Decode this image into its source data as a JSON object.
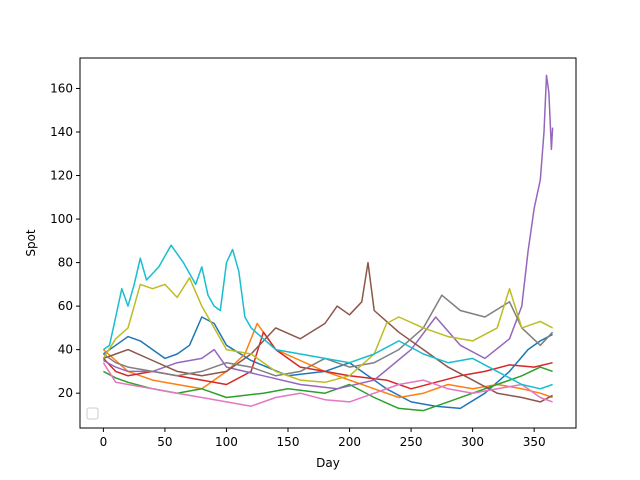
{
  "chart_data": {
    "type": "line",
    "title": "",
    "xlabel": "Day",
    "ylabel": "Spot",
    "xlim": [
      -19,
      384
    ],
    "ylim": [
      4,
      174
    ],
    "xticks": [
      0,
      50,
      100,
      150,
      200,
      250,
      300,
      350
    ],
    "yticks": [
      20,
      40,
      60,
      80,
      100,
      120,
      140,
      160
    ],
    "grid": false,
    "legend": "lower-left (empty)",
    "series": [
      {
        "color": "#1f77b4",
        "points": [
          [
            0,
            38
          ],
          [
            10,
            42
          ],
          [
            20,
            46
          ],
          [
            30,
            44
          ],
          [
            40,
            40
          ],
          [
            50,
            36
          ],
          [
            60,
            38
          ],
          [
            70,
            42
          ],
          [
            80,
            55
          ],
          [
            90,
            52
          ],
          [
            100,
            42
          ],
          [
            120,
            35
          ],
          [
            150,
            28
          ],
          [
            180,
            30
          ],
          [
            200,
            34
          ],
          [
            230,
            22
          ],
          [
            250,
            16
          ],
          [
            270,
            14
          ],
          [
            290,
            13
          ],
          [
            310,
            20
          ],
          [
            330,
            30
          ],
          [
            345,
            40
          ],
          [
            355,
            44
          ],
          [
            365,
            47
          ]
        ]
      },
      {
        "color": "#ff7f0e",
        "points": [
          [
            0,
            40
          ],
          [
            10,
            35
          ],
          [
            20,
            30
          ],
          [
            40,
            26
          ],
          [
            60,
            24
          ],
          [
            80,
            22
          ],
          [
            100,
            30
          ],
          [
            115,
            38
          ],
          [
            125,
            52
          ],
          [
            140,
            40
          ],
          [
            160,
            35
          ],
          [
            180,
            30
          ],
          [
            200,
            26
          ],
          [
            220,
            22
          ],
          [
            240,
            18
          ],
          [
            260,
            20
          ],
          [
            280,
            24
          ],
          [
            300,
            22
          ],
          [
            320,
            24
          ],
          [
            340,
            22
          ],
          [
            355,
            20
          ],
          [
            365,
            18
          ]
        ]
      },
      {
        "color": "#2ca02c",
        "points": [
          [
            0,
            30
          ],
          [
            10,
            27
          ],
          [
            20,
            25
          ],
          [
            40,
            22
          ],
          [
            60,
            20
          ],
          [
            80,
            22
          ],
          [
            100,
            18
          ],
          [
            130,
            20
          ],
          [
            150,
            22
          ],
          [
            180,
            20
          ],
          [
            200,
            24
          ],
          [
            220,
            18
          ],
          [
            240,
            13
          ],
          [
            260,
            12
          ],
          [
            280,
            16
          ],
          [
            300,
            20
          ],
          [
            320,
            24
          ],
          [
            340,
            28
          ],
          [
            355,
            32
          ],
          [
            365,
            30
          ]
        ]
      },
      {
        "color": "#d62728",
        "points": [
          [
            0,
            36
          ],
          [
            10,
            30
          ],
          [
            20,
            28
          ],
          [
            40,
            30
          ],
          [
            60,
            28
          ],
          [
            80,
            26
          ],
          [
            100,
            24
          ],
          [
            120,
            30
          ],
          [
            130,
            48
          ],
          [
            140,
            40
          ],
          [
            160,
            32
          ],
          [
            180,
            30
          ],
          [
            200,
            28
          ],
          [
            230,
            26
          ],
          [
            250,
            22
          ],
          [
            270,
            25
          ],
          [
            290,
            28
          ],
          [
            310,
            30
          ],
          [
            330,
            33
          ],
          [
            350,
            32
          ],
          [
            365,
            34
          ]
        ]
      },
      {
        "color": "#9467bd",
        "points": [
          [
            0,
            35
          ],
          [
            10,
            32
          ],
          [
            20,
            30
          ],
          [
            40,
            30
          ],
          [
            60,
            34
          ],
          [
            80,
            36
          ],
          [
            90,
            40
          ],
          [
            100,
            32
          ],
          [
            130,
            28
          ],
          [
            160,
            24
          ],
          [
            190,
            22
          ],
          [
            220,
            26
          ],
          [
            250,
            40
          ],
          [
            270,
            55
          ],
          [
            290,
            42
          ],
          [
            310,
            36
          ],
          [
            330,
            45
          ],
          [
            340,
            60
          ],
          [
            345,
            85
          ],
          [
            350,
            105
          ],
          [
            355,
            118
          ],
          [
            358,
            140
          ],
          [
            360,
            166
          ],
          [
            362,
            158
          ],
          [
            364,
            132
          ],
          [
            365,
            142
          ]
        ]
      },
      {
        "color": "#8c564b",
        "points": [
          [
            0,
            36
          ],
          [
            10,
            38
          ],
          [
            20,
            40
          ],
          [
            40,
            35
          ],
          [
            60,
            30
          ],
          [
            80,
            28
          ],
          [
            100,
            30
          ],
          [
            120,
            38
          ],
          [
            140,
            50
          ],
          [
            160,
            45
          ],
          [
            180,
            52
          ],
          [
            190,
            60
          ],
          [
            200,
            56
          ],
          [
            210,
            62
          ],
          [
            215,
            80
          ],
          [
            220,
            58
          ],
          [
            240,
            48
          ],
          [
            260,
            40
          ],
          [
            280,
            32
          ],
          [
            300,
            26
          ],
          [
            320,
            20
          ],
          [
            340,
            18
          ],
          [
            355,
            16
          ],
          [
            365,
            19
          ]
        ]
      },
      {
        "color": "#e377c2",
        "points": [
          [
            0,
            34
          ],
          [
            10,
            25
          ],
          [
            20,
            24
          ],
          [
            40,
            22
          ],
          [
            60,
            20
          ],
          [
            80,
            18
          ],
          [
            100,
            16
          ],
          [
            120,
            14
          ],
          [
            140,
            18
          ],
          [
            160,
            20
          ],
          [
            180,
            17
          ],
          [
            200,
            16
          ],
          [
            220,
            20
          ],
          [
            240,
            24
          ],
          [
            260,
            26
          ],
          [
            280,
            22
          ],
          [
            300,
            20
          ],
          [
            320,
            22
          ],
          [
            340,
            24
          ],
          [
            355,
            18
          ],
          [
            365,
            16
          ]
        ]
      },
      {
        "color": "#7f7f7f",
        "points": [
          [
            0,
            38
          ],
          [
            10,
            34
          ],
          [
            20,
            32
          ],
          [
            40,
            30
          ],
          [
            60,
            28
          ],
          [
            80,
            30
          ],
          [
            100,
            34
          ],
          [
            120,
            32
          ],
          [
            140,
            28
          ],
          [
            160,
            30
          ],
          [
            180,
            36
          ],
          [
            200,
            32
          ],
          [
            220,
            34
          ],
          [
            240,
            40
          ],
          [
            260,
            50
          ],
          [
            275,
            65
          ],
          [
            290,
            58
          ],
          [
            310,
            55
          ],
          [
            330,
            62
          ],
          [
            340,
            50
          ],
          [
            355,
            42
          ],
          [
            365,
            48
          ]
        ]
      },
      {
        "color": "#bcbd22",
        "points": [
          [
            0,
            36
          ],
          [
            10,
            45
          ],
          [
            20,
            50
          ],
          [
            30,
            70
          ],
          [
            40,
            68
          ],
          [
            50,
            70
          ],
          [
            60,
            64
          ],
          [
            70,
            73
          ],
          [
            80,
            60
          ],
          [
            90,
            50
          ],
          [
            100,
            40
          ],
          [
            120,
            38
          ],
          [
            140,
            30
          ],
          [
            160,
            26
          ],
          [
            180,
            25
          ],
          [
            200,
            28
          ],
          [
            220,
            38
          ],
          [
            230,
            52
          ],
          [
            240,
            55
          ],
          [
            260,
            50
          ],
          [
            280,
            46
          ],
          [
            300,
            44
          ],
          [
            320,
            50
          ],
          [
            330,
            68
          ],
          [
            340,
            50
          ],
          [
            355,
            53
          ],
          [
            365,
            50
          ]
        ]
      },
      {
        "color": "#17becf",
        "points": [
          [
            0,
            40
          ],
          [
            5,
            42
          ],
          [
            10,
            55
          ],
          [
            15,
            68
          ],
          [
            20,
            60
          ],
          [
            25,
            70
          ],
          [
            30,
            82
          ],
          [
            35,
            72
          ],
          [
            45,
            78
          ],
          [
            55,
            88
          ],
          [
            65,
            80
          ],
          [
            75,
            70
          ],
          [
            80,
            78
          ],
          [
            85,
            65
          ],
          [
            90,
            60
          ],
          [
            95,
            58
          ],
          [
            100,
            80
          ],
          [
            105,
            86
          ],
          [
            110,
            76
          ],
          [
            115,
            55
          ],
          [
            120,
            50
          ],
          [
            130,
            45
          ],
          [
            140,
            40
          ],
          [
            160,
            38
          ],
          [
            180,
            36
          ],
          [
            200,
            34
          ],
          [
            220,
            38
          ],
          [
            240,
            44
          ],
          [
            260,
            38
          ],
          [
            280,
            34
          ],
          [
            300,
            36
          ],
          [
            320,
            30
          ],
          [
            340,
            24
          ],
          [
            355,
            22
          ],
          [
            365,
            24
          ]
        ]
      }
    ]
  }
}
